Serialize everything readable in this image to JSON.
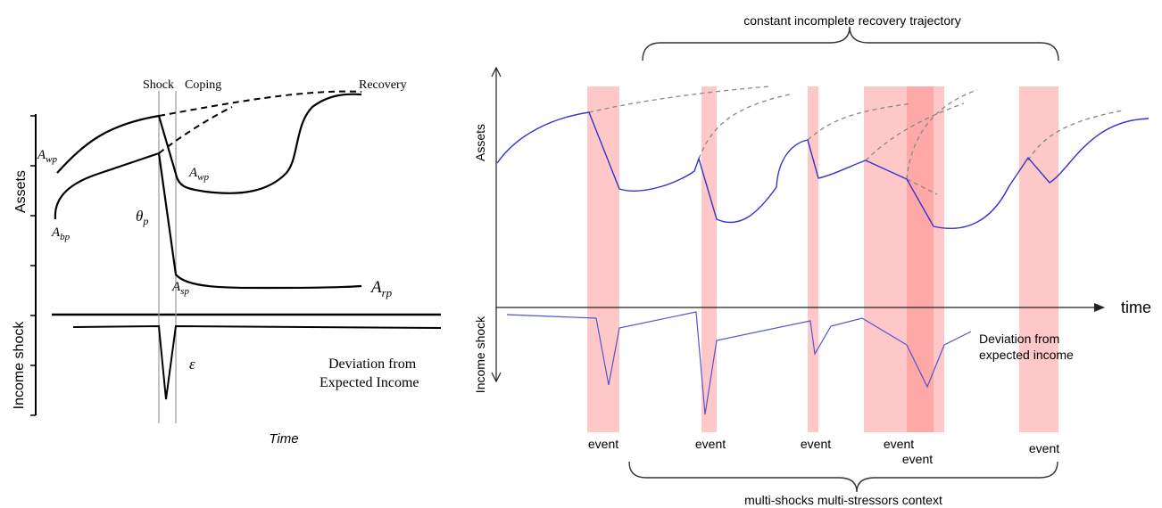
{
  "left_panel": {
    "y_axis_label_top": "Assets",
    "y_axis_label_bottom": "Income shock",
    "x_axis_label": "Time",
    "phase_labels": {
      "shock": "Shock",
      "coping": "Coping",
      "recovery": "Recovery"
    },
    "curve_labels": {
      "awp_left": "A",
      "awp_left_sub": "wp",
      "abp": "A",
      "abp_sub": "bp",
      "awp_mid": "A",
      "awp_mid_sub": "wp",
      "theta": "θ",
      "theta_sub": "p",
      "asp": "A",
      "asp_sub": "sp",
      "arp": "A",
      "arp_sub": "rp",
      "epsilon": "ε"
    },
    "income_note_line1": "Deviation from",
    "income_note_line2": "Expected Income"
  },
  "right_panel": {
    "top_brace_label": "constant incomplete recovery trajectory",
    "y_axis_label_top": "Assets",
    "y_axis_label_bottom": "Income shock",
    "x_axis_label": "time",
    "income_note_line1": "Deviation from",
    "income_note_line2": "expected income",
    "event_labels": [
      "event",
      "event",
      "event",
      "event",
      "event",
      "event"
    ],
    "bottom_brace_label": "multi-shocks multi-stressors context"
  },
  "colors": {
    "asset_line": "#3333cc",
    "income_line": "#5555cc",
    "dashed": "#888888",
    "event_band": "#ffc8c8",
    "event_overlap": "#ff9a9a",
    "axis": "#000000"
  }
}
